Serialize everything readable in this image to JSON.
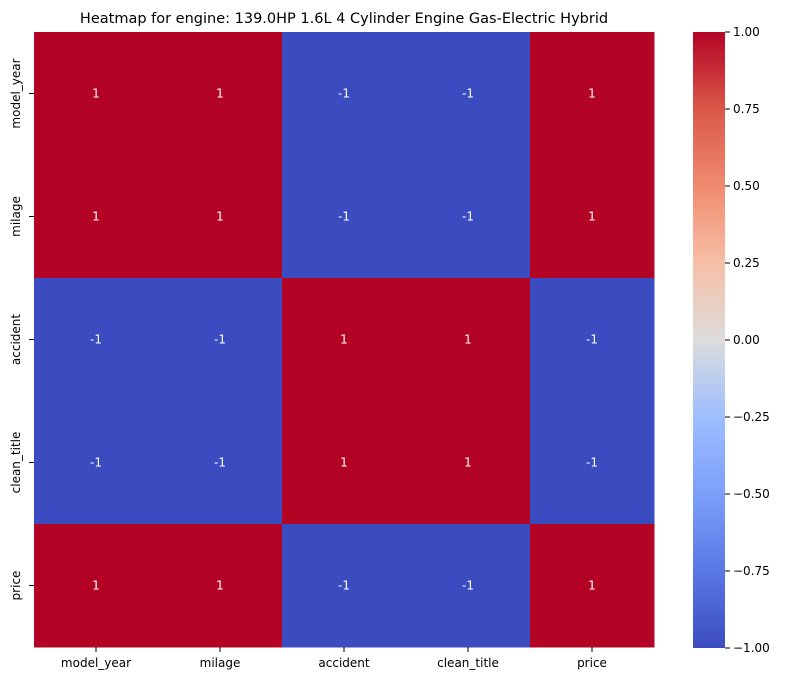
{
  "chart_data": {
    "type": "heatmap",
    "title": "Heatmap for engine: 139.0HP 1.6L 4 Cylinder Engine Gas-Electric Hybrid",
    "x_categories": [
      "model_year",
      "milage",
      "accident",
      "clean_title",
      "price"
    ],
    "y_categories": [
      "model_year",
      "milage",
      "accident",
      "clean_title",
      "price"
    ],
    "values": [
      [
        1,
        1,
        -1,
        -1,
        1
      ],
      [
        1,
        1,
        -1,
        -1,
        1
      ],
      [
        -1,
        -1,
        1,
        1,
        -1
      ],
      [
        -1,
        -1,
        1,
        1,
        -1
      ],
      [
        1,
        1,
        -1,
        -1,
        1
      ]
    ],
    "cell_labels": [
      [
        "1",
        "1",
        "-1",
        "-1",
        "1"
      ],
      [
        "1",
        "1",
        "-1",
        "-1",
        "1"
      ],
      [
        "-1",
        "-1",
        "1",
        "1",
        "-1"
      ],
      [
        "-1",
        "-1",
        "1",
        "1",
        "-1"
      ],
      [
        "1",
        "1",
        "-1",
        "-1",
        "1"
      ]
    ],
    "colormap": "coolwarm",
    "colorbar": {
      "range": [
        -1,
        1
      ],
      "tick_values": [
        1.0,
        0.75,
        0.5,
        0.25,
        0.0,
        -0.25,
        -0.5,
        -0.75,
        -1.0
      ],
      "tick_labels": [
        "1.00",
        "0.75",
        "0.50",
        "0.25",
        "0.00",
        "−0.25",
        "−0.50",
        "−0.75",
        "−1.00"
      ],
      "placement": "right"
    },
    "colors": {
      "high": "#b40426",
      "low": "#3b4cc0"
    }
  }
}
